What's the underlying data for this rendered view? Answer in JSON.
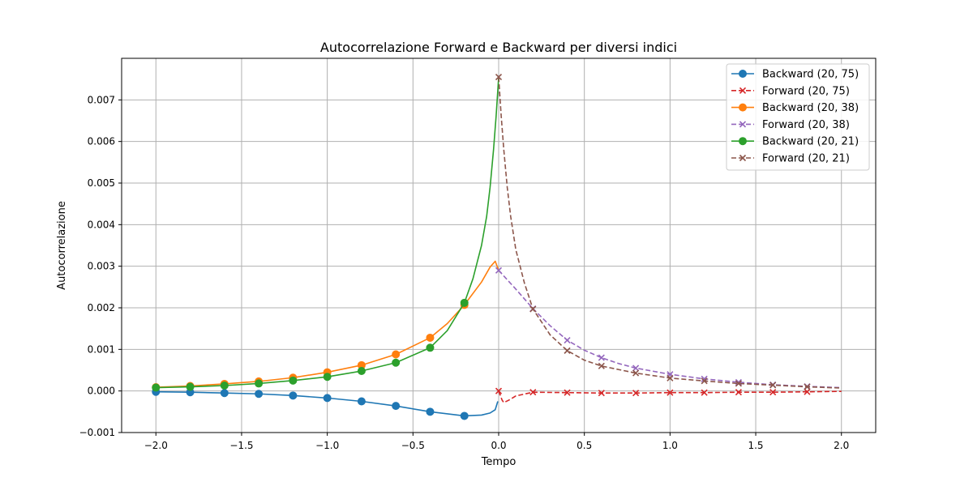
{
  "chart_data": {
    "type": "line",
    "title": "Autocorrelazione Forward e Backward per diversi indici",
    "xlabel": "Tempo",
    "ylabel": "Autocorrelazione",
    "xlim": [
      -2.2,
      2.2
    ],
    "ylim": [
      -0.001,
      0.008
    ],
    "xticks": [
      -2.0,
      -1.5,
      -1.0,
      -0.5,
      0.0,
      0.5,
      1.0,
      1.5,
      2.0
    ],
    "xtick_labels": [
      "−2.0",
      "−1.5",
      "−1.0",
      "−0.5",
      "0.0",
      "0.5",
      "1.0",
      "1.5",
      "2.0"
    ],
    "yticks": [
      -0.001,
      0.0,
      0.001,
      0.002,
      0.003,
      0.004,
      0.005,
      0.006,
      0.007
    ],
    "ytick_labels": [
      "−0.001",
      "0.000",
      "0.001",
      "0.002",
      "0.003",
      "0.004",
      "0.005",
      "0.006",
      "0.007"
    ],
    "grid": true,
    "legend_position": "top-right",
    "series": [
      {
        "name": "Backward (20, 75)",
        "color": "#1f77b4",
        "line_style": "solid",
        "marker": "circle",
        "x": [
          -2.0,
          -1.8,
          -1.6,
          -1.4,
          -1.2,
          -1.0,
          -0.8,
          -0.6,
          -0.4,
          -0.2,
          -0.1,
          -0.05,
          -0.02,
          -0.005
        ],
        "y": [
          -2e-05,
          -3e-05,
          -5e-05,
          -7e-05,
          -0.00011,
          -0.00017,
          -0.00025,
          -0.00036,
          -0.0005,
          -0.0006,
          -0.00058,
          -0.00053,
          -0.00045,
          -0.00025
        ],
        "marker_x": [
          -2.0,
          -1.8,
          -1.6,
          -1.4,
          -1.2,
          -1.0,
          -0.8,
          -0.6,
          -0.4,
          -0.2
        ],
        "marker_y": [
          -2e-05,
          -3e-05,
          -5e-05,
          -7e-05,
          -0.00011,
          -0.00017,
          -0.00025,
          -0.00036,
          -0.0005,
          -0.0006
        ]
      },
      {
        "name": "Forward (20, 75)",
        "color": "#d62728",
        "line_style": "dashed",
        "marker": "x",
        "x": [
          0.0,
          0.02,
          0.03,
          0.06,
          0.1,
          0.2,
          0.4,
          0.6,
          0.8,
          1.0,
          1.2,
          1.4,
          1.6,
          1.8,
          2.0
        ],
        "y": [
          0.0,
          -0.00022,
          -0.00028,
          -0.00022,
          -0.00012,
          -3e-05,
          -4e-05,
          -5e-05,
          -5e-05,
          -4e-05,
          -4e-05,
          -3e-05,
          -3e-05,
          -2e-05,
          -1e-05
        ],
        "marker_x": [
          0.0,
          0.2,
          0.4,
          0.6,
          0.8,
          1.0,
          1.2,
          1.4,
          1.6,
          1.8
        ],
        "marker_y": [
          0.0,
          -3e-05,
          -4e-05,
          -5e-05,
          -5e-05,
          -4e-05,
          -4e-05,
          -3e-05,
          -3e-05,
          -2e-05
        ]
      },
      {
        "name": "Backward (20, 38)",
        "color": "#ff7f0e",
        "line_style": "solid",
        "marker": "circle",
        "x": [
          -2.0,
          -1.8,
          -1.6,
          -1.4,
          -1.2,
          -1.0,
          -0.8,
          -0.6,
          -0.4,
          -0.3,
          -0.2,
          -0.1,
          -0.05,
          -0.02,
          0.0
        ],
        "y": [
          9e-05,
          0.00012,
          0.00017,
          0.00023,
          0.00032,
          0.00045,
          0.00062,
          0.00088,
          0.00128,
          0.00162,
          0.00207,
          0.00262,
          0.00298,
          0.00312,
          0.0029
        ],
        "marker_x": [
          -2.0,
          -1.8,
          -1.6,
          -1.4,
          -1.2,
          -1.0,
          -0.8,
          -0.6,
          -0.4,
          -0.2
        ],
        "marker_y": [
          9e-05,
          0.00012,
          0.00017,
          0.00023,
          0.00032,
          0.00045,
          0.00062,
          0.00088,
          0.00128,
          0.00207
        ]
      },
      {
        "name": "Forward (20, 38)",
        "color": "#9467bd",
        "line_style": "dashed",
        "marker": "x",
        "x": [
          0.0,
          0.1,
          0.2,
          0.3,
          0.4,
          0.5,
          0.6,
          0.7,
          0.8,
          1.0,
          1.2,
          1.4,
          1.6,
          1.8,
          2.0
        ],
        "y": [
          0.0029,
          0.00245,
          0.00198,
          0.00157,
          0.00122,
          0.00098,
          0.0008,
          0.00066,
          0.00055,
          0.0004,
          0.00029,
          0.00021,
          0.00015,
          0.00011,
          8e-05
        ],
        "marker_x": [
          0.0,
          0.2,
          0.4,
          0.6,
          0.8,
          1.0,
          1.2,
          1.4,
          1.6,
          1.8
        ],
        "marker_y": [
          0.0029,
          0.00198,
          0.00122,
          0.0008,
          0.00055,
          0.0004,
          0.00029,
          0.00021,
          0.00015,
          0.00011
        ]
      },
      {
        "name": "Backward (20, 21)",
        "color": "#2ca02c",
        "line_style": "solid",
        "marker": "circle",
        "x": [
          -2.0,
          -1.8,
          -1.6,
          -1.4,
          -1.2,
          -1.0,
          -0.8,
          -0.6,
          -0.4,
          -0.3,
          -0.2,
          -0.15,
          -0.1,
          -0.07,
          -0.05,
          -0.03,
          -0.015,
          0.0
        ],
        "y": [
          8e-05,
          0.0001,
          0.00013,
          0.00018,
          0.00025,
          0.00034,
          0.00048,
          0.00068,
          0.00104,
          0.00145,
          0.00212,
          0.0027,
          0.0035,
          0.0042,
          0.0049,
          0.0058,
          0.0066,
          0.00755
        ],
        "marker_x": [
          -2.0,
          -1.8,
          -1.6,
          -1.4,
          -1.2,
          -1.0,
          -0.8,
          -0.6,
          -0.4,
          -0.2
        ],
        "marker_y": [
          8e-05,
          0.0001,
          0.00013,
          0.00018,
          0.00025,
          0.00034,
          0.00048,
          0.00068,
          0.00104,
          0.00212
        ]
      },
      {
        "name": "Forward (20, 21)",
        "color": "#8c564b",
        "line_style": "dashed",
        "marker": "x",
        "x": [
          0.0,
          0.015,
          0.03,
          0.05,
          0.07,
          0.1,
          0.15,
          0.2,
          0.3,
          0.4,
          0.5,
          0.6,
          0.8,
          1.0,
          1.2,
          1.4,
          1.6,
          1.8,
          2.0
        ],
        "y": [
          0.00755,
          0.0066,
          0.0058,
          0.0049,
          0.0042,
          0.0034,
          0.0026,
          0.00197,
          0.00135,
          0.00097,
          0.00074,
          0.0006,
          0.00043,
          0.00031,
          0.00024,
          0.00018,
          0.00014,
          0.0001,
          7e-05
        ],
        "marker_x": [
          0.0,
          0.2,
          0.4,
          0.6,
          0.8,
          1.0,
          1.2,
          1.4,
          1.6,
          1.8
        ],
        "marker_y": [
          0.00755,
          0.00197,
          0.00097,
          0.0006,
          0.00043,
          0.00031,
          0.00024,
          0.00018,
          0.00014,
          0.0001
        ]
      }
    ]
  }
}
